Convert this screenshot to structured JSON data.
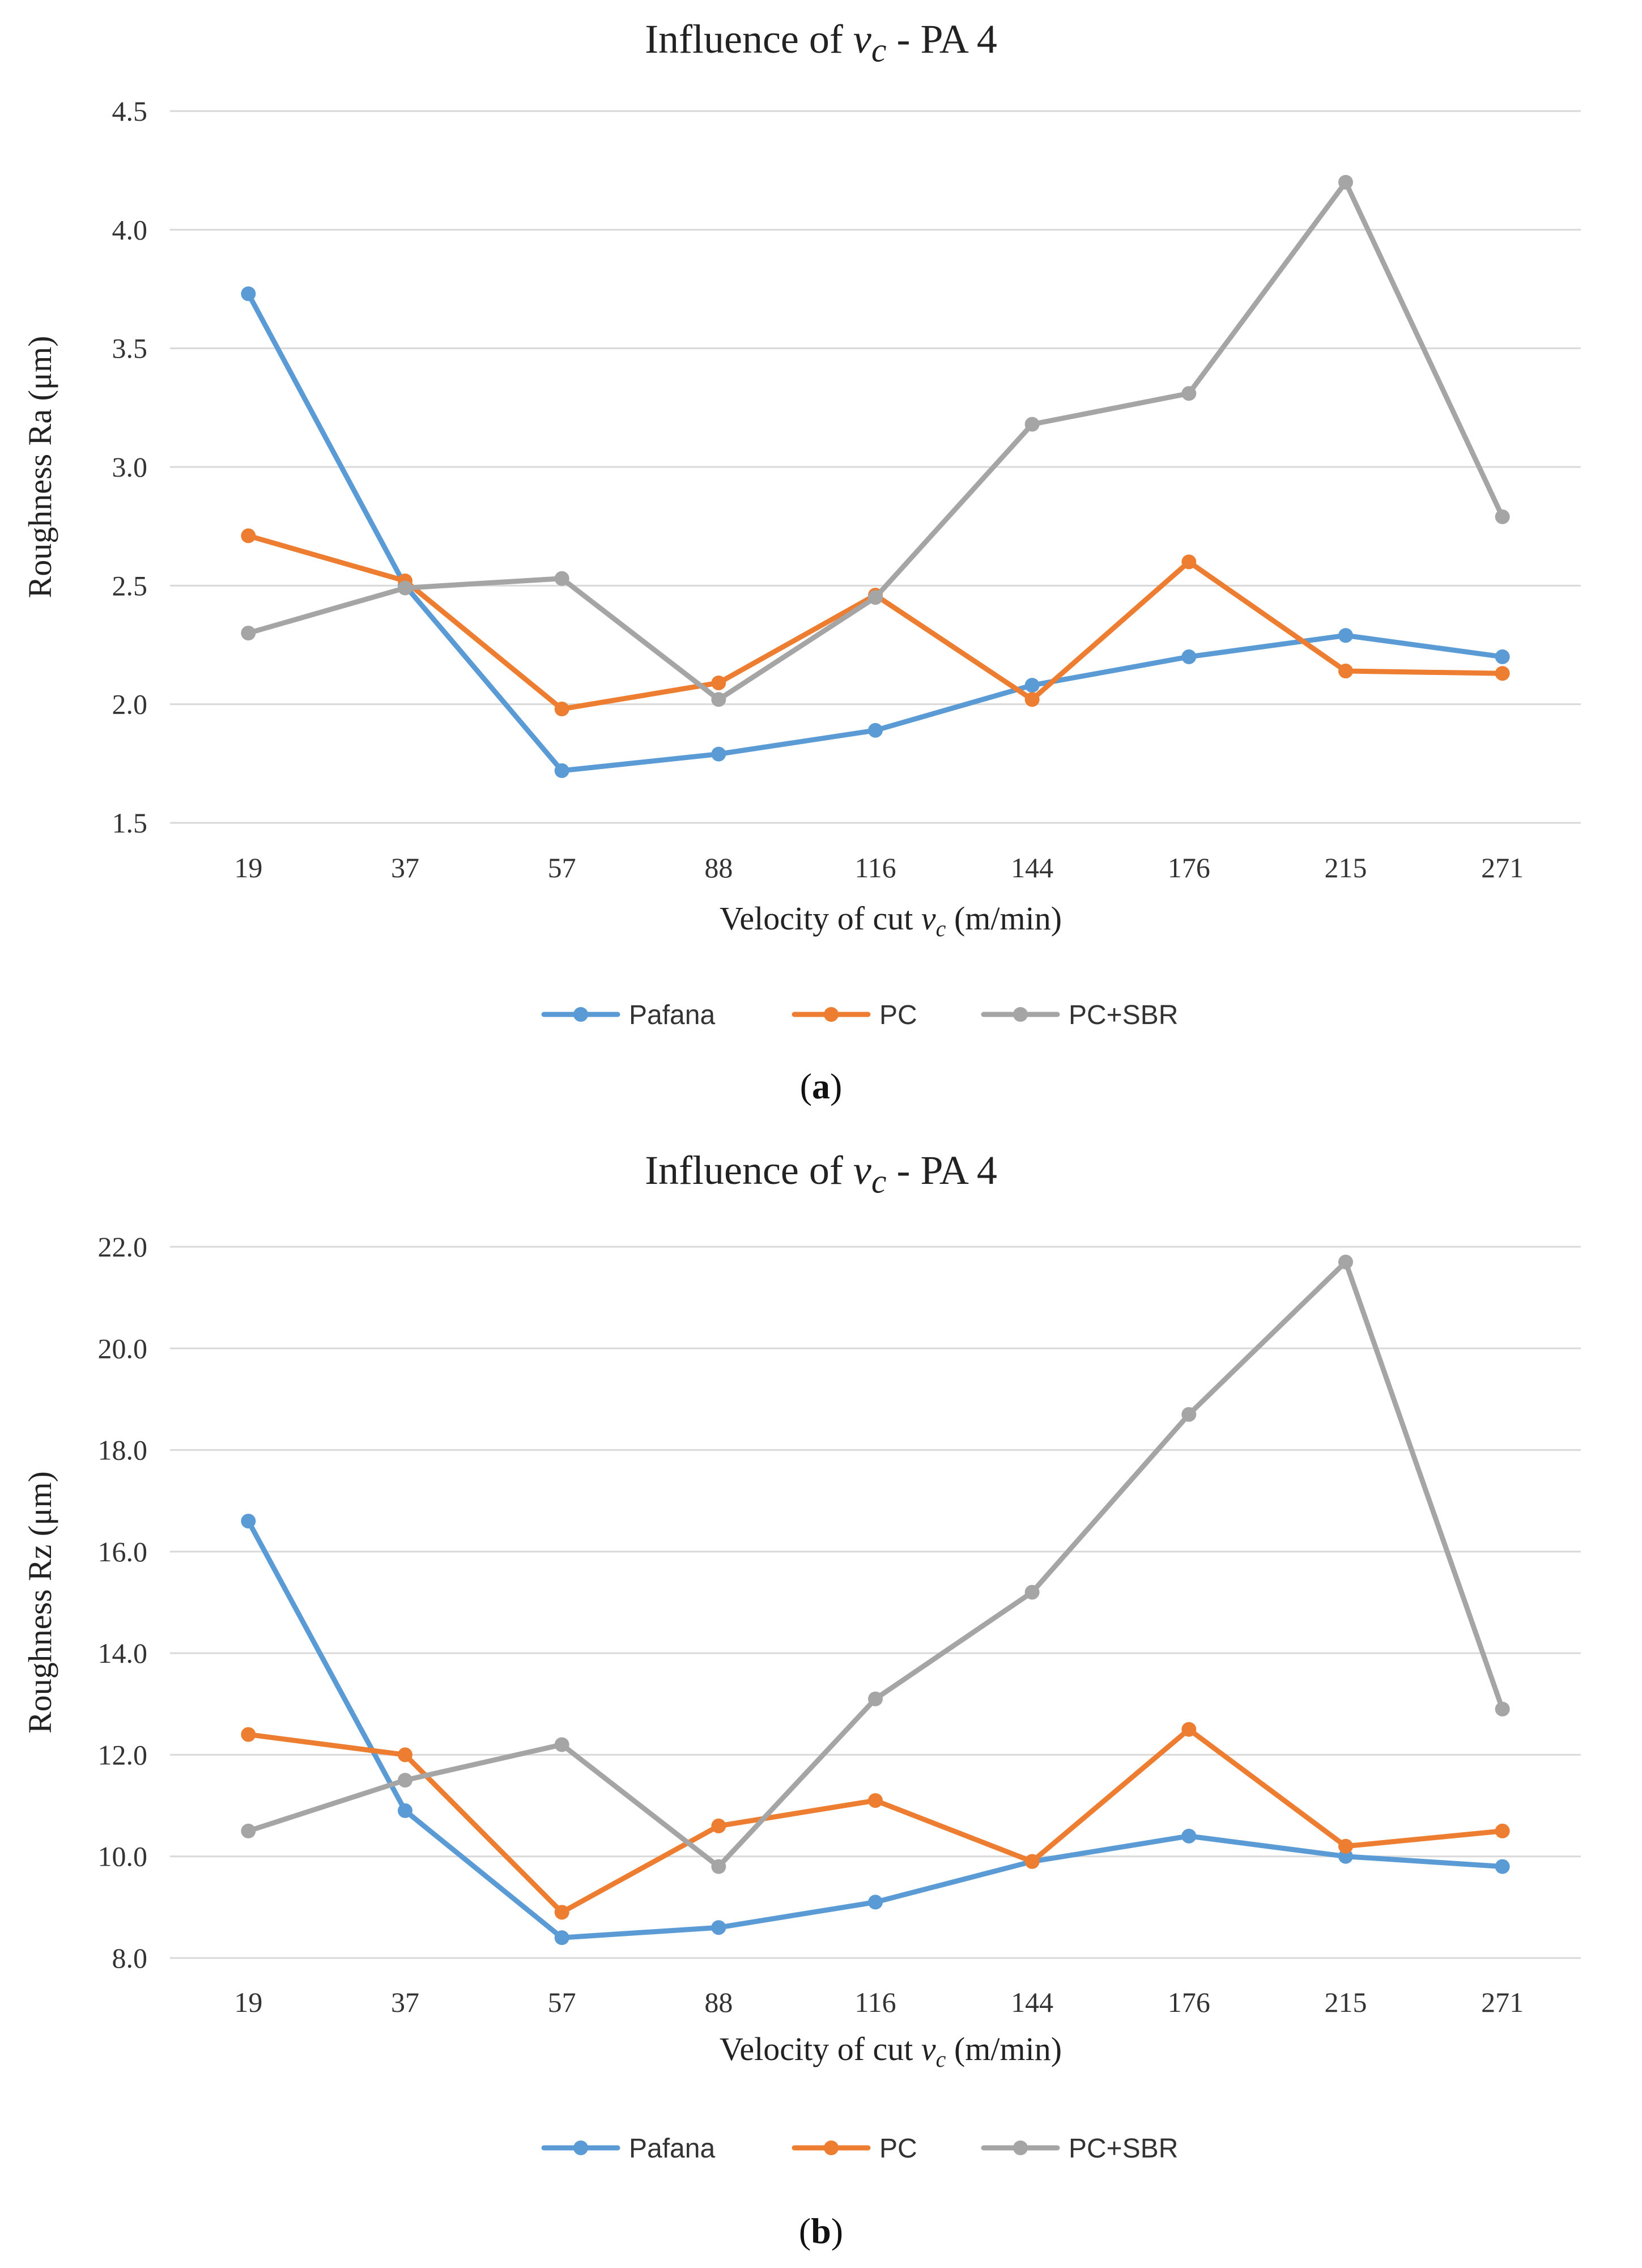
{
  "colors": {
    "Pafana": "#5B9BD5",
    "PC": "#ED7D31",
    "PC+SBR": "#A5A5A5",
    "grid": "#d9d9d9"
  },
  "chart_data": [
    {
      "id": "a",
      "type": "line",
      "panel_label_pre": "(",
      "panel_label_letter": "a",
      "panel_label_post": ")",
      "title_pre": "Influence of ",
      "title_symbol": "v",
      "title_subscript": "c",
      "title_post": " - PA 4",
      "xlabel_pre": "Velocity of cut ",
      "xlabel_symbol": "v",
      "xlabel_subscript": "c",
      "xlabel_post": " (m/min)",
      "ylabel": "Roughness Ra (μm)",
      "categories": [
        "19",
        "37",
        "57",
        "88",
        "116",
        "144",
        "176",
        "215",
        "271"
      ],
      "ylim": [
        1.5,
        4.5
      ],
      "yticks": [
        "1.5",
        "2.0",
        "2.5",
        "3.0",
        "3.5",
        "4.0",
        "4.5"
      ],
      "legend_position": "bottom",
      "series": [
        {
          "name": "Pafana",
          "values": [
            3.73,
            2.5,
            1.72,
            1.79,
            1.89,
            2.08,
            2.2,
            2.29,
            2.2
          ]
        },
        {
          "name": "PC",
          "values": [
            2.71,
            2.52,
            1.98,
            2.09,
            2.46,
            2.02,
            2.6,
            2.14,
            2.13
          ]
        },
        {
          "name": "PC+SBR",
          "values": [
            2.3,
            2.49,
            2.53,
            2.02,
            2.45,
            3.18,
            3.31,
            4.2,
            2.79
          ]
        }
      ]
    },
    {
      "id": "b",
      "type": "line",
      "panel_label_pre": "(",
      "panel_label_letter": "b",
      "panel_label_post": ")",
      "title_pre": "Influence of ",
      "title_symbol": "v",
      "title_subscript": "c",
      "title_post": " - PA 4",
      "xlabel_pre": "Velocity of cut ",
      "xlabel_symbol": "v",
      "xlabel_subscript": "c",
      "xlabel_post": " (m/min)",
      "ylabel": "Roughness Rz (μm)",
      "categories": [
        "19",
        "37",
        "57",
        "88",
        "116",
        "144",
        "176",
        "215",
        "271"
      ],
      "ylim": [
        8.0,
        22.0
      ],
      "yticks": [
        "8.0",
        "10.0",
        "12.0",
        "14.0",
        "16.0",
        "18.0",
        "20.0",
        "22.0"
      ],
      "legend_position": "bottom",
      "series": [
        {
          "name": "Pafana",
          "values": [
            16.6,
            10.9,
            8.4,
            8.6,
            9.1,
            9.9,
            10.4,
            10.0,
            9.8
          ]
        },
        {
          "name": "PC",
          "values": [
            12.4,
            12.0,
            8.9,
            10.6,
            11.1,
            9.9,
            12.5,
            10.2,
            10.5
          ]
        },
        {
          "name": "PC+SBR",
          "values": [
            10.5,
            11.5,
            12.2,
            9.8,
            13.1,
            15.2,
            18.7,
            21.7,
            12.9
          ]
        }
      ]
    }
  ]
}
